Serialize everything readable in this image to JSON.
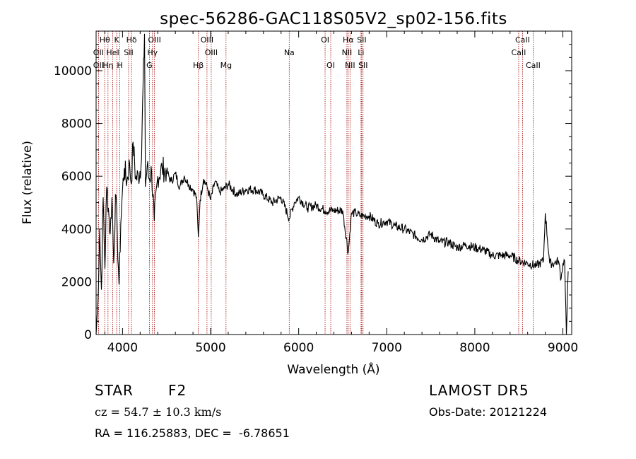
{
  "chart_data": {
    "type": "line",
    "title": "spec-56286-GAC118S05V2_sp02-156.fits",
    "xlabel": "Wavelength (Å)",
    "ylabel": "Flux (relative)",
    "xlim": [
      3700,
      9100
    ],
    "ylim": [
      0,
      11500
    ],
    "xticks": [
      4000,
      5000,
      6000,
      7000,
      8000,
      9000
    ],
    "yticks": [
      0,
      2000,
      4000,
      6000,
      8000,
      10000
    ],
    "grid": false,
    "line_color": "#000000",
    "marker_color": "#a00000",
    "series": [
      {
        "x": [
          3700,
          3720,
          3740,
          3760,
          3780,
          3800,
          3820,
          3840,
          3860,
          3880,
          3900,
          3920,
          3940,
          3960,
          3980,
          4000,
          4020,
          4050,
          4080,
          4100,
          4120,
          4150,
          4180,
          4210,
          4250,
          4260,
          4280,
          4300,
          4330,
          4360,
          4400,
          4450,
          4500,
          4550,
          4600,
          4650,
          4700,
          4750,
          4800,
          4840,
          4861,
          4880,
          4920,
          4960,
          5000,
          5050,
          5100,
          5150,
          5200,
          5300,
          5400,
          5500,
          5600,
          5700,
          5800,
          5893,
          5950,
          6000,
          6100,
          6200,
          6300,
          6400,
          6500,
          6563,
          6600,
          6650,
          6700,
          6750,
          6800,
          6900,
          7000,
          7100,
          7200,
          7300,
          7400,
          7500,
          7600,
          7700,
          7800,
          7900,
          8000,
          8100,
          8200,
          8300,
          8400,
          8500,
          8600,
          8700,
          8780,
          8800,
          8850,
          8900,
          8950,
          8980,
          9000,
          9020,
          9040,
          9060
        ],
        "y": [
          0,
          1200,
          4000,
          1700,
          5200,
          2500,
          5600,
          4800,
          3800,
          5200,
          2700,
          5300,
          3900,
          1900,
          4200,
          5500,
          6300,
          5800,
          6500,
          5700,
          7300,
          5900,
          6000,
          6400,
          11400,
          5600,
          6400,
          5900,
          6200,
          4300,
          6000,
          6300,
          6200,
          5800,
          6100,
          5600,
          6000,
          5700,
          5500,
          5200,
          3700,
          5100,
          5900,
          5600,
          5100,
          5800,
          5400,
          5500,
          5700,
          5300,
          5500,
          5500,
          5300,
          5000,
          5200,
          4400,
          5000,
          5200,
          4800,
          4900,
          4700,
          4700,
          4700,
          3100,
          4600,
          4600,
          4500,
          4500,
          4500,
          4200,
          4300,
          4100,
          4000,
          3800,
          3600,
          3800,
          3500,
          3500,
          3300,
          3400,
          3300,
          3200,
          3000,
          3000,
          3000,
          2800,
          2700,
          2600,
          2800,
          4600,
          2700,
          2700,
          2800,
          2100,
          2700,
          2800,
          0,
          2400
        ]
      }
    ],
    "lines": [
      {
        "label": "Hθ",
        "x": 3798,
        "row": 0
      },
      {
        "label": "K",
        "x": 3934,
        "row": 0
      },
      {
        "label": "Hδ",
        "x": 4102,
        "row": 0
      },
      {
        "label": "OIII",
        "x": 4363,
        "row": 0
      },
      {
        "label": "OIII",
        "x": 4959,
        "row": 0
      },
      {
        "label": "OI",
        "x": 6300,
        "row": 0
      },
      {
        "label": "Hα",
        "x": 6563,
        "row": 0
      },
      {
        "label": "SII",
        "x": 6716,
        "row": 0
      },
      {
        "label": "CaII",
        "x": 8542,
        "row": 0
      },
      {
        "label": "OII",
        "x": 3727,
        "row": 1
      },
      {
        "label": "HeI",
        "x": 3889,
        "row": 1
      },
      {
        "label": "SII",
        "x": 4069,
        "row": 1
      },
      {
        "label": "Hγ",
        "x": 4340,
        "row": 1
      },
      {
        "label": "OIII",
        "x": 5007,
        "row": 1
      },
      {
        "label": "Na",
        "x": 5893,
        "row": 1
      },
      {
        "label": "NII",
        "x": 6548,
        "row": 1
      },
      {
        "label": "Li",
        "x": 6708,
        "row": 1
      },
      {
        "label": "CaII",
        "x": 8498,
        "row": 1
      },
      {
        "label": "OII",
        "x": 3727,
        "row": 2
      },
      {
        "label": "Hη",
        "x": 3835,
        "row": 2
      },
      {
        "label": "H",
        "x": 3969,
        "row": 2
      },
      {
        "label": "G",
        "x": 4305,
        "row": 2
      },
      {
        "label": "Hβ",
        "x": 4861,
        "row": 2
      },
      {
        "label": "Mg",
        "x": 5175,
        "row": 2
      },
      {
        "label": "OI",
        "x": 6364,
        "row": 2
      },
      {
        "label": "NII",
        "x": 6583,
        "row": 2
      },
      {
        "label": "SII",
        "x": 6731,
        "row": 2
      },
      {
        "label": "CaII",
        "x": 8662,
        "row": 2
      }
    ]
  },
  "info": {
    "object_type": "STAR",
    "subclass": "F2",
    "survey": "LAMOST DR5",
    "redshift": "cz = 54.7 ± 10.3 km/s",
    "obs_date": "Obs-Date: 20121224",
    "coords": "RA = 116.25883, DEC =  -6.78651"
  }
}
